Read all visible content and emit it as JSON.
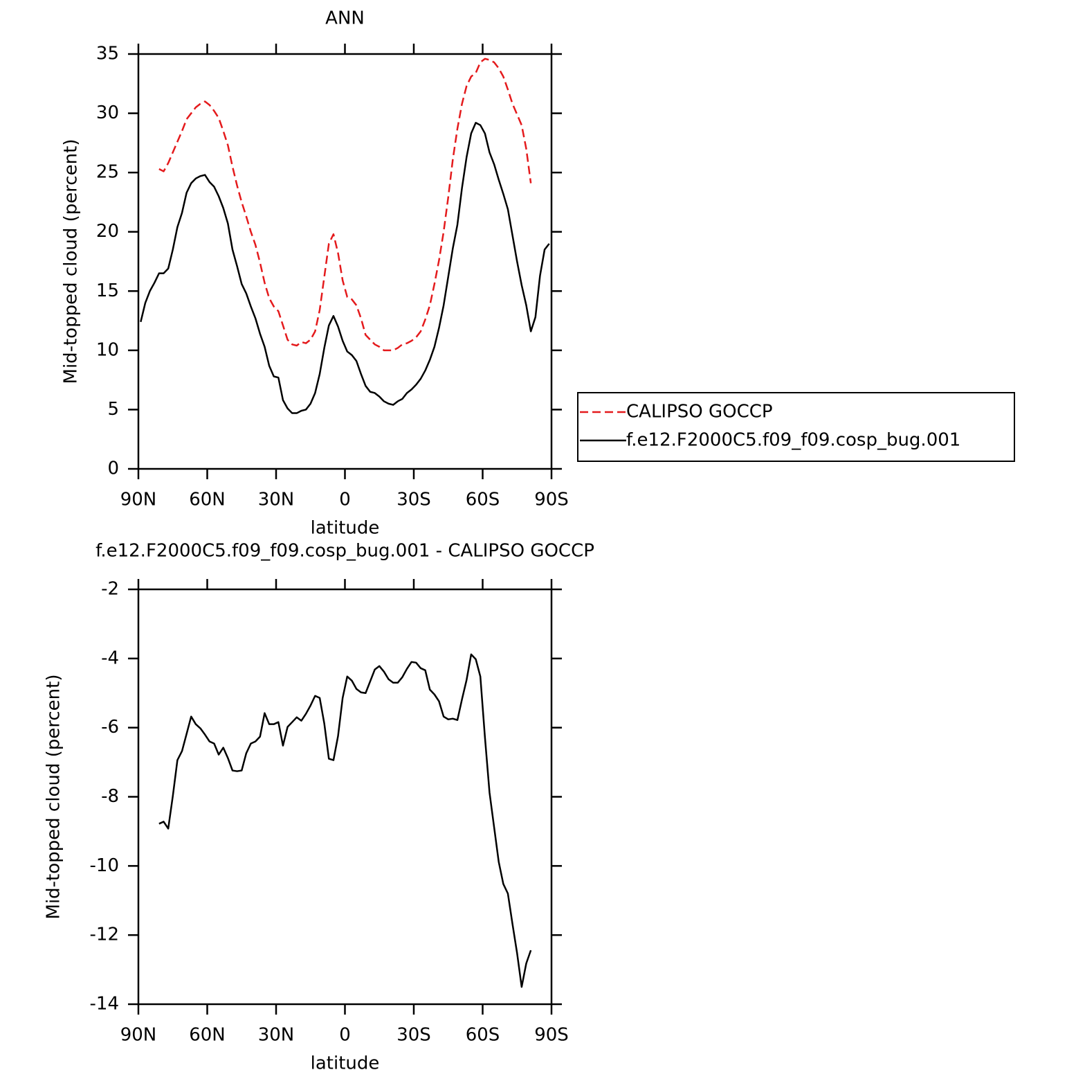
{
  "chart_data": [
    {
      "type": "line",
      "title": "ANN",
      "xlabel": "latitude",
      "ylabel": "Mid-topped cloud (percent)",
      "xlim": [
        90,
        -90
      ],
      "xticks": [
        {
          "value": 90,
          "label": "90N"
        },
        {
          "value": 60,
          "label": "60N"
        },
        {
          "value": 30,
          "label": "30N"
        },
        0,
        {
          "value": -30,
          "label": "30S"
        },
        {
          "value": -60,
          "label": "60S"
        },
        {
          "value": -90,
          "label": "90S"
        }
      ],
      "ylim": [
        0,
        35
      ],
      "yticks": [
        0,
        5,
        10,
        15,
        20,
        25,
        30,
        35
      ],
      "legend": "right",
      "series": [
        {
          "name": "CALIPSO GOCCP",
          "color": "#e41a1c",
          "linestyle": "dashed",
          "x": [
            81,
            79,
            77,
            75,
            73,
            71,
            69,
            67,
            65,
            63,
            61,
            59,
            57,
            55,
            53,
            51,
            49,
            47,
            45,
            43,
            41,
            39,
            37,
            35,
            33,
            31,
            29,
            27,
            25,
            23,
            21,
            19,
            17,
            15,
            13,
            11,
            9,
            7,
            5,
            3,
            1,
            -1,
            -3,
            -5,
            -7,
            -9,
            -11,
            -13,
            -15,
            -17,
            -19,
            -21,
            -23,
            -25,
            -27,
            -29,
            -31,
            -33,
            -35,
            -37,
            -39,
            -41,
            -43,
            -45,
            -47,
            -49,
            -51,
            -53,
            -55,
            -57,
            -59,
            -61,
            -63,
            -65,
            -67,
            -69,
            -71,
            -73,
            -75,
            -77,
            -79,
            -81
          ],
          "values": [
            25.3,
            25.1,
            25.8,
            26.7,
            27.6,
            28.5,
            29.5,
            30.0,
            30.5,
            30.8,
            31.0,
            30.7,
            30.2,
            29.6,
            28.5,
            27.3,
            25.5,
            23.9,
            22.5,
            21.3,
            20.0,
            18.9,
            17.4,
            15.7,
            14.4,
            13.7,
            13.3,
            12.1,
            10.9,
            10.5,
            10.4,
            10.7,
            10.6,
            10.9,
            11.6,
            13.4,
            16.2,
            19.0,
            19.8,
            18.2,
            15.9,
            14.5,
            14.3,
            13.8,
            12.7,
            11.3,
            10.9,
            10.5,
            10.3,
            10.0,
            10.0,
            10.0,
            10.2,
            10.5,
            10.6,
            10.8,
            11.1,
            11.6,
            12.6,
            13.8,
            15.6,
            17.6,
            20.0,
            22.9,
            26.1,
            28.7,
            30.8,
            32.3,
            33.1,
            33.4,
            34.3,
            34.6,
            34.5,
            34.3,
            33.8,
            33.1,
            32.0,
            30.8,
            29.9,
            29.0,
            27.0,
            24.1
          ]
        },
        {
          "name": "f.e12.F2000C5.f09_f09.cosp_bug.001",
          "color": "#000000",
          "linestyle": "solid",
          "x": [
            89,
            87,
            85,
            83,
            81,
            79,
            77,
            75,
            73,
            71,
            69,
            67,
            65,
            63,
            61,
            59,
            57,
            55,
            53,
            51,
            49,
            47,
            45,
            43,
            41,
            39,
            37,
            35,
            33,
            31,
            29,
            27,
            25,
            23,
            21,
            19,
            17,
            15,
            13,
            11,
            9,
            7,
            5,
            3,
            1,
            -1,
            -3,
            -5,
            -7,
            -9,
            -11,
            -13,
            -15,
            -17,
            -19,
            -21,
            -23,
            -25,
            -27,
            -29,
            -31,
            -33,
            -35,
            -37,
            -39,
            -41,
            -43,
            -45,
            -47,
            -49,
            -51,
            -53,
            -55,
            -57,
            -59,
            -61,
            -63,
            -65,
            -67,
            -69,
            -71,
            -73,
            -75,
            -77,
            -79,
            -81,
            -83,
            -85,
            -87,
            -89
          ],
          "values": [
            12.4,
            14.0,
            15.0,
            15.7,
            16.5,
            16.5,
            16.9,
            18.5,
            20.4,
            21.6,
            23.3,
            24.1,
            24.5,
            24.7,
            24.8,
            24.2,
            23.8,
            23.0,
            22.0,
            20.7,
            18.5,
            17.1,
            15.6,
            14.8,
            13.7,
            12.7,
            11.4,
            10.3,
            8.7,
            7.8,
            7.7,
            5.8,
            5.1,
            4.7,
            4.7,
            4.9,
            5.0,
            5.5,
            6.4,
            8.0,
            10.2,
            12.1,
            12.9,
            12.0,
            10.8,
            9.9,
            9.6,
            9.1,
            8.0,
            7.0,
            6.5,
            6.4,
            6.1,
            5.7,
            5.5,
            5.4,
            5.7,
            5.9,
            6.4,
            6.7,
            7.1,
            7.6,
            8.3,
            9.2,
            10.3,
            11.9,
            13.8,
            16.2,
            18.6,
            20.6,
            23.7,
            26.3,
            28.3,
            29.2,
            29.0,
            28.3,
            26.7,
            25.7,
            24.4,
            23.2,
            21.9,
            19.7,
            17.5,
            15.5,
            13.8,
            11.6,
            12.8,
            16.3,
            18.5,
            19.0
          ]
        }
      ]
    },
    {
      "type": "line",
      "title": "f.e12.F2000C5.f09_f09.cosp_bug.001 - CALIPSO GOCCP",
      "xlabel": "latitude",
      "ylabel": "Mid-topped cloud (percent)",
      "xlim": [
        90,
        -90
      ],
      "xticks": [
        {
          "value": 90,
          "label": "90N"
        },
        {
          "value": 60,
          "label": "60N"
        },
        {
          "value": 30,
          "label": "30N"
        },
        0,
        {
          "value": -30,
          "label": "30S"
        },
        {
          "value": -60,
          "label": "60S"
        },
        {
          "value": -90,
          "label": "90S"
        }
      ],
      "ylim": [
        -14,
        -2
      ],
      "yticks": [
        -14,
        -12,
        -10,
        -8,
        -6,
        -4,
        -2
      ],
      "color": "#000000",
      "linestyle": "solid",
      "x": [
        81,
        79,
        77,
        75,
        73,
        71,
        69,
        67,
        65,
        63,
        61,
        59,
        57,
        55,
        53,
        51,
        49,
        47,
        45,
        43,
        41,
        39,
        37,
        35,
        33,
        31,
        29,
        27,
        25,
        23,
        21,
        19,
        17,
        15,
        13,
        11,
        9,
        7,
        5,
        3,
        1,
        -1,
        -3,
        -5,
        -7,
        -9,
        -11,
        -13,
        -15,
        -17,
        -19,
        -21,
        -23,
        -25,
        -27,
        -29,
        -31,
        -33,
        -35,
        -37,
        -39,
        -41,
        -43,
        -45,
        -47,
        -49,
        -51,
        -53,
        -55,
        -57,
        -59,
        -61,
        -63,
        -65,
        -67,
        -69,
        -71,
        -73,
        -75,
        -77,
        -79,
        -81
      ],
      "values": [
        -8.78,
        -8.72,
        -8.92,
        -7.98,
        -6.94,
        -6.68,
        -6.18,
        -5.68,
        -5.9,
        -6.02,
        -6.2,
        -6.4,
        -6.46,
        -6.78,
        -6.58,
        -6.88,
        -7.24,
        -7.26,
        -7.24,
        -6.74,
        -6.46,
        -6.4,
        -6.26,
        -5.58,
        -5.9,
        -5.9,
        -5.84,
        -6.52,
        -5.98,
        -5.84,
        -5.7,
        -5.8,
        -5.6,
        -5.36,
        -5.08,
        -5.14,
        -5.88,
        -6.9,
        -6.94,
        -6.24,
        -5.14,
        -4.52,
        -4.64,
        -4.88,
        -4.98,
        -5.0,
        -4.66,
        -4.32,
        -4.22,
        -4.38,
        -4.6,
        -4.7,
        -4.7,
        -4.54,
        -4.3,
        -4.1,
        -4.12,
        -4.28,
        -4.34,
        -4.9,
        -5.04,
        -5.24,
        -5.68,
        -5.76,
        -5.74,
        -5.78,
        -5.18,
        -4.62,
        -3.88,
        -4.02,
        -4.52,
        -6.28,
        -7.88,
        -8.88,
        -9.88,
        -10.52,
        -10.8,
        -11.68,
        -12.52,
        -13.5,
        -12.82,
        -12.44
      ]
    }
  ]
}
